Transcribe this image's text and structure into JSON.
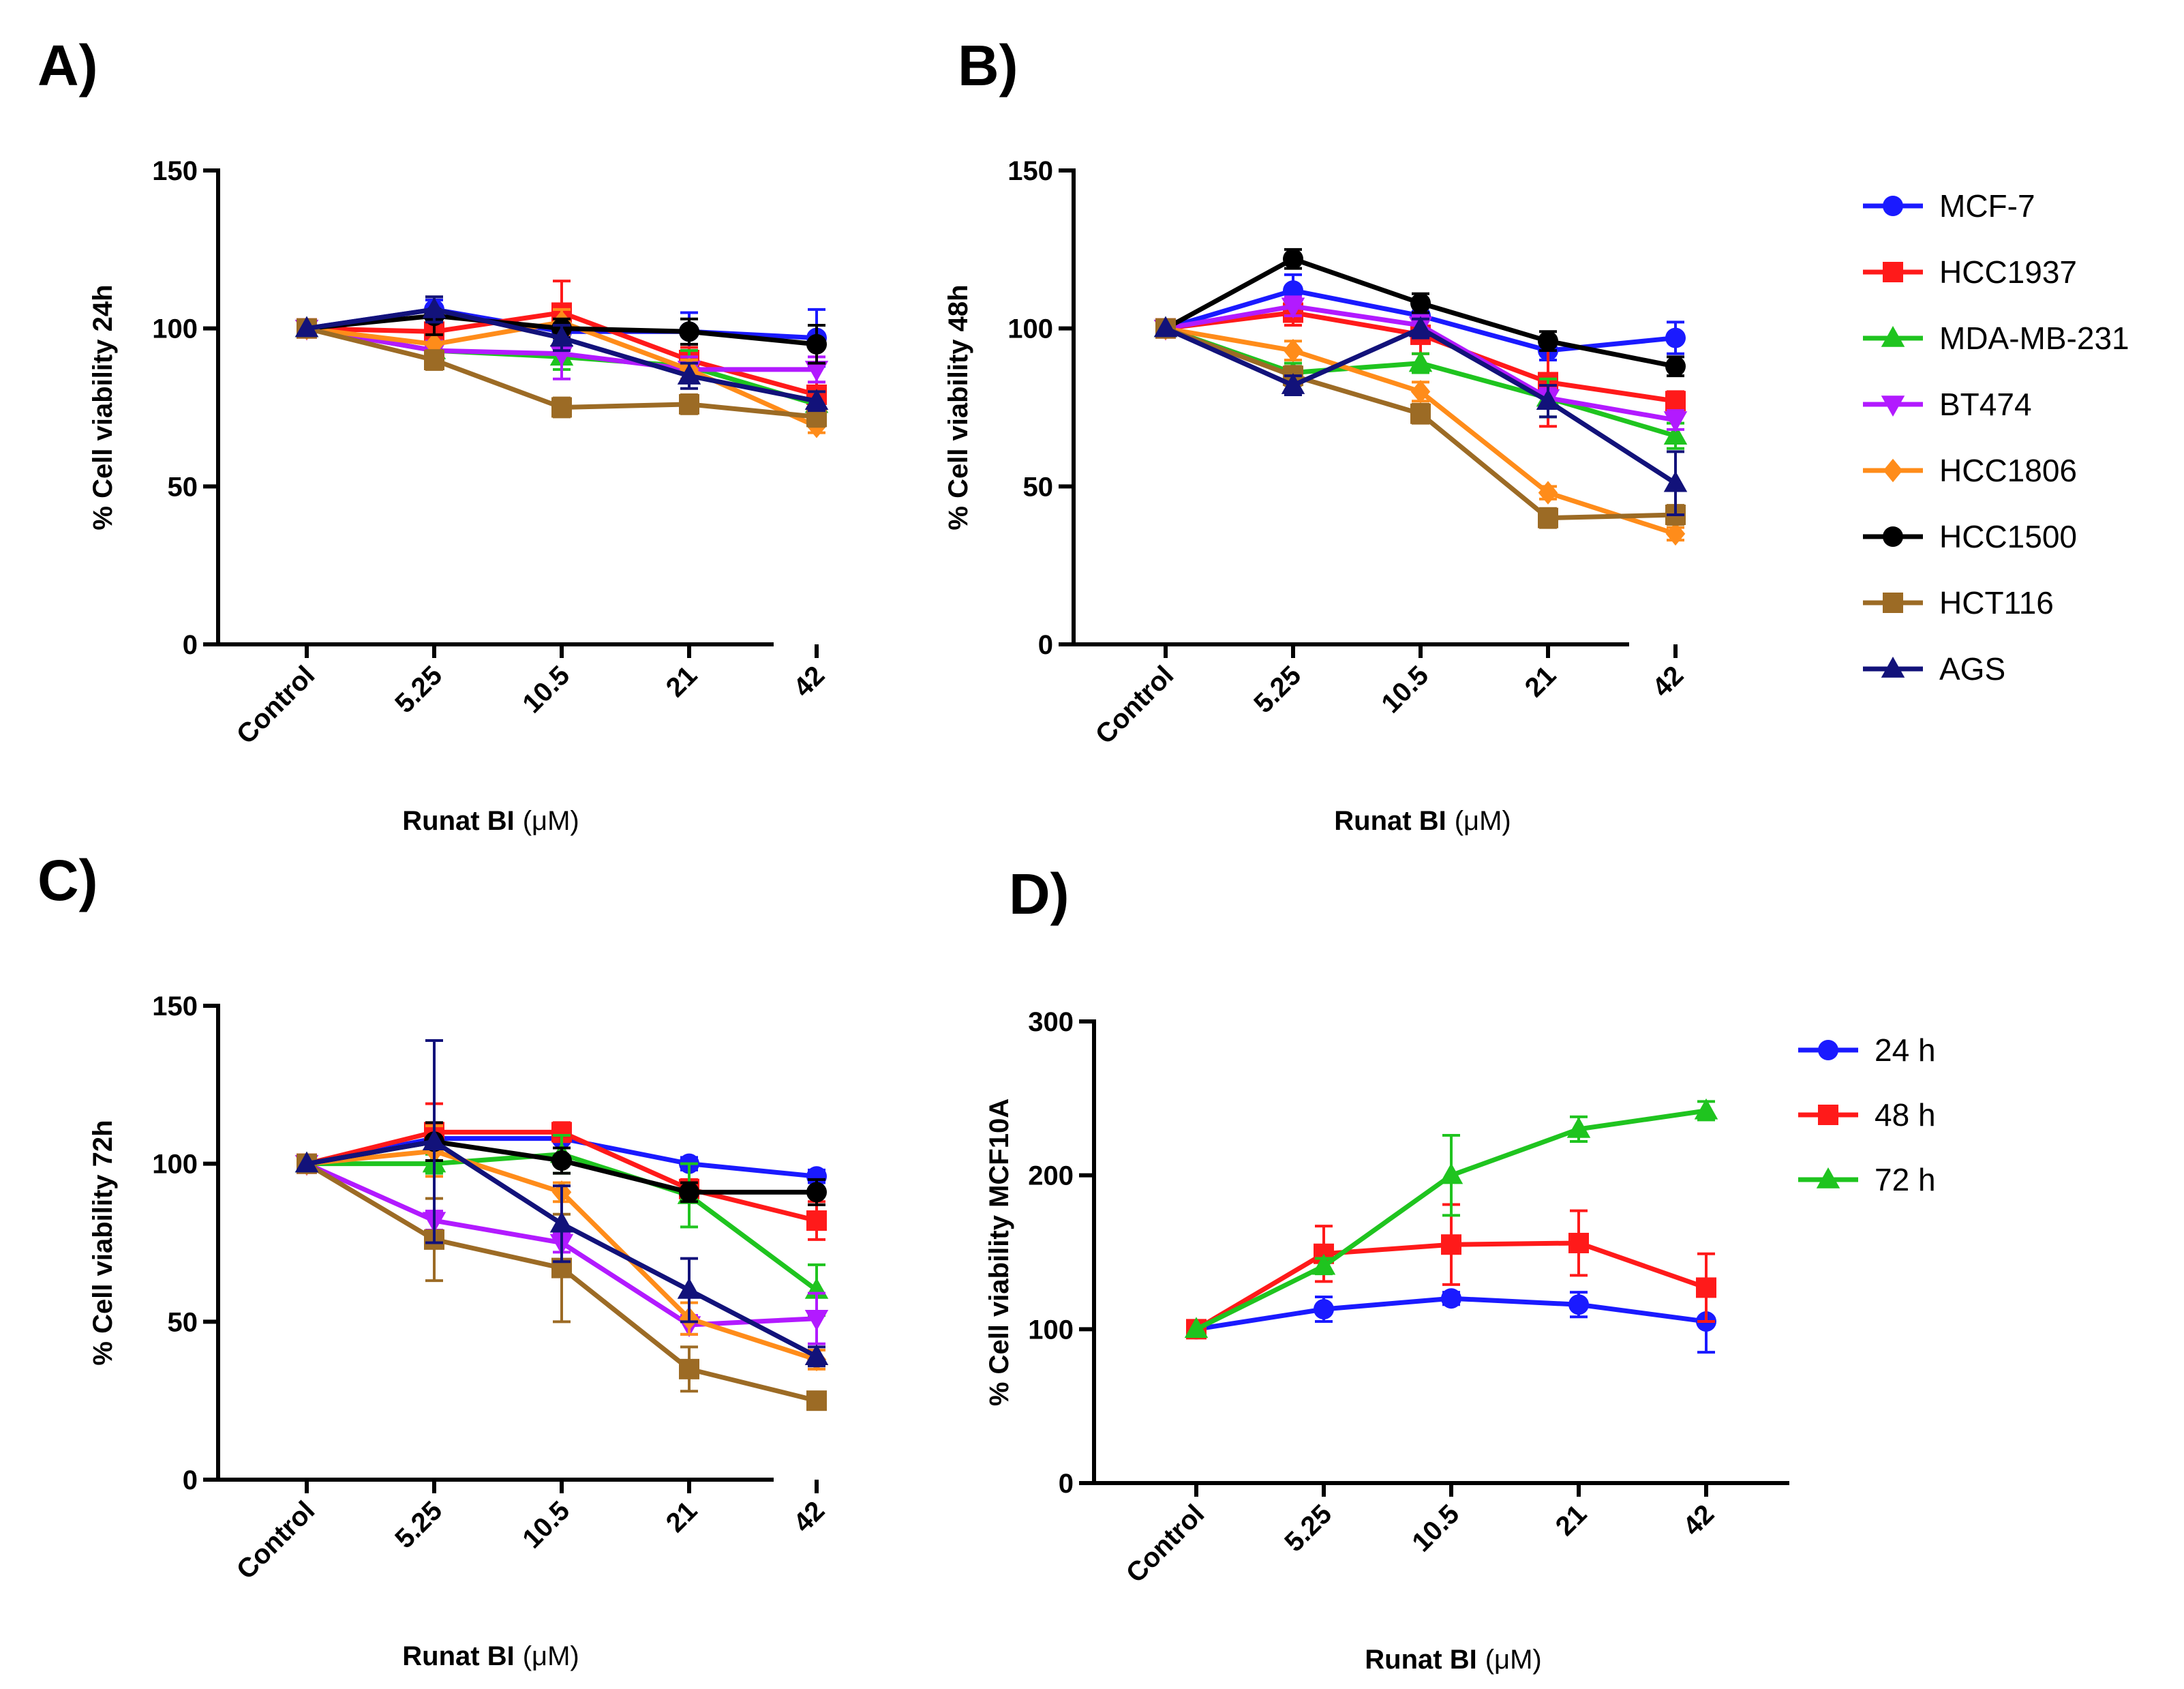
{
  "figure": {
    "colors": {
      "MCF-7": "#1a1aff",
      "HCC1937": "#ff1a1a",
      "MDA-MB-231": "#1fc41f",
      "BT474": "#b21aff",
      "HCC1806": "#ff8c1a",
      "HCC1500": "#000000",
      "HCT116": "#9c6b25",
      "AGS": "#12127a",
      "24 h": "#1a1aff",
      "48 h": "#ff1a1a",
      "72 h": "#1fc41f"
    },
    "markers": {
      "MCF-7": "circle",
      "HCC1937": "square",
      "MDA-MB-231": "triangle-up",
      "BT474": "triangle-down",
      "HCC1806": "diamond",
      "HCC1500": "circle",
      "HCT116": "square",
      "AGS": "triangle-up",
      "24 h": "circle",
      "48 h": "square",
      "72 h": "triangle-up"
    },
    "legend_cells": [
      "MCF-7",
      "HCC1937",
      "MDA-MB-231",
      "BT474",
      "HCC1806",
      "HCC1500",
      "HCT116",
      "AGS"
    ],
    "legend_times": [
      "24 h",
      "48 h",
      "72 h"
    ]
  },
  "chart_data": [
    {
      "id": "A",
      "panel_label": "A)",
      "type": "line",
      "categories": [
        "Control",
        "5.25",
        "10.5",
        "21",
        "42"
      ],
      "xlabel_bold": "Runat BI",
      "xlabel_unit": "(μM)",
      "ylabel": "% Cell viability 24h",
      "ylim": [
        0,
        150
      ],
      "yticks": [
        0,
        50,
        100,
        150
      ],
      "series": [
        {
          "name": "MCF-7",
          "values": [
            100,
            106,
            99,
            99,
            97
          ],
          "err": [
            0,
            3,
            3,
            6,
            9
          ]
        },
        {
          "name": "HCC1937",
          "values": [
            100,
            99,
            105,
            90,
            79
          ],
          "err": [
            0,
            4,
            10,
            4,
            4
          ]
        },
        {
          "name": "MDA-MB-231",
          "values": [
            100,
            93,
            91,
            88,
            76
          ],
          "err": [
            0,
            3,
            4,
            5,
            4
          ]
        },
        {
          "name": "BT474",
          "values": [
            100,
            93,
            92,
            87,
            87
          ],
          "err": [
            0,
            3,
            8,
            4,
            4
          ]
        },
        {
          "name": "HCC1806",
          "values": [
            100,
            95,
            102,
            87,
            69
          ],
          "err": [
            0,
            3,
            4,
            3,
            2
          ]
        },
        {
          "name": "HCC1500",
          "values": [
            100,
            104,
            100,
            99,
            95
          ],
          "err": [
            0,
            6,
            3,
            4,
            6
          ]
        },
        {
          "name": "HCT116",
          "values": [
            100,
            90,
            75,
            76,
            72
          ],
          "err": [
            0,
            3,
            3,
            3,
            3
          ]
        },
        {
          "name": "AGS",
          "values": [
            100,
            106,
            97,
            85,
            77
          ],
          "err": [
            0,
            4,
            4,
            4,
            3
          ]
        }
      ]
    },
    {
      "id": "B",
      "panel_label": "B)",
      "type": "line",
      "categories": [
        "Control",
        "5.25",
        "10.5",
        "21",
        "42"
      ],
      "xlabel_bold": "Runat BI",
      "xlabel_unit": "(μM)",
      "ylabel": "% Cell viability 48h",
      "ylim": [
        0,
        150
      ],
      "yticks": [
        0,
        50,
        100,
        150
      ],
      "series": [
        {
          "name": "MCF-7",
          "values": [
            100,
            112,
            104,
            93,
            97
          ],
          "err": [
            0,
            5,
            4,
            3,
            5
          ]
        },
        {
          "name": "HCC1937",
          "values": [
            100,
            105,
            98,
            83,
            77
          ],
          "err": [
            0,
            4,
            6,
            14,
            3
          ]
        },
        {
          "name": "MDA-MB-231",
          "values": [
            100,
            86,
            89,
            78,
            66
          ],
          "err": [
            0,
            3,
            3,
            6,
            4
          ]
        },
        {
          "name": "BT474",
          "values": [
            100,
            107,
            101,
            78,
            71
          ],
          "err": [
            0,
            3,
            3,
            3,
            3
          ]
        },
        {
          "name": "HCC1806",
          "values": [
            100,
            93,
            80,
            48,
            35
          ],
          "err": [
            0,
            3,
            3,
            2,
            2
          ]
        },
        {
          "name": "HCC1500",
          "values": [
            100,
            122,
            108,
            96,
            88
          ],
          "err": [
            0,
            3,
            3,
            3,
            3
          ]
        },
        {
          "name": "HCT116",
          "values": [
            100,
            85,
            73,
            40,
            41
          ],
          "err": [
            0,
            3,
            3,
            3,
            3
          ]
        },
        {
          "name": "AGS",
          "values": [
            100,
            82,
            100,
            77,
            51
          ],
          "err": [
            0,
            3,
            3,
            5,
            10
          ]
        }
      ]
    },
    {
      "id": "C",
      "panel_label": "C)",
      "type": "line",
      "categories": [
        "Control",
        "5.25",
        "10.5",
        "21",
        "42"
      ],
      "xlabel_bold": "Runat BI",
      "xlabel_unit": "(μM)",
      "ylabel": "% Cell viability 72h",
      "ylim": [
        0,
        150
      ],
      "yticks": [
        0,
        50,
        100,
        150
      ],
      "series": [
        {
          "name": "MCF-7",
          "values": [
            100,
            108,
            108,
            100,
            96
          ],
          "err": [
            0,
            4,
            3,
            2,
            2
          ]
        },
        {
          "name": "HCC1937",
          "values": [
            100,
            110,
            110,
            92,
            82
          ],
          "err": [
            0,
            9,
            3,
            3,
            6
          ]
        },
        {
          "name": "MDA-MB-231",
          "values": [
            100,
            100,
            103,
            90,
            60
          ],
          "err": [
            0,
            3,
            6,
            10,
            8
          ]
        },
        {
          "name": "BT474",
          "values": [
            100,
            82,
            75,
            49,
            51
          ],
          "err": [
            0,
            3,
            3,
            3,
            8
          ]
        },
        {
          "name": "HCC1806",
          "values": [
            100,
            104,
            91,
            51,
            38
          ],
          "err": [
            0,
            8,
            3,
            5,
            3
          ]
        },
        {
          "name": "HCC1500",
          "values": [
            100,
            107,
            101,
            91,
            91
          ],
          "err": [
            0,
            6,
            4,
            3,
            4
          ]
        },
        {
          "name": "HCT116",
          "values": [
            100,
            76,
            67,
            35,
            25
          ],
          "err": [
            0,
            13,
            17,
            7,
            2
          ]
        },
        {
          "name": "AGS",
          "values": [
            100,
            107,
            81,
            60,
            39
          ],
          "err": [
            0,
            32,
            12,
            10,
            3
          ]
        }
      ]
    },
    {
      "id": "D",
      "panel_label": "D)",
      "type": "line",
      "categories": [
        "Control",
        "5.25",
        "10.5",
        "21",
        "42"
      ],
      "xlabel_bold": "Runat BI",
      "xlabel_unit": "(μM)",
      "ylabel": "% Cell viability MCF10A",
      "ylim": [
        0,
        300
      ],
      "yticks": [
        0,
        100,
        200,
        300
      ],
      "series": [
        {
          "name": "24 h",
          "values": [
            100,
            113,
            120,
            116,
            105
          ],
          "err": [
            0,
            8,
            4,
            8,
            20
          ]
        },
        {
          "name": "48 h",
          "values": [
            100,
            149,
            155,
            156,
            127
          ],
          "err": [
            0,
            18,
            26,
            21,
            22
          ]
        },
        {
          "name": "72 h",
          "values": [
            100,
            141,
            200,
            230,
            242
          ],
          "err": [
            0,
            5,
            26,
            8,
            6
          ]
        }
      ]
    }
  ]
}
